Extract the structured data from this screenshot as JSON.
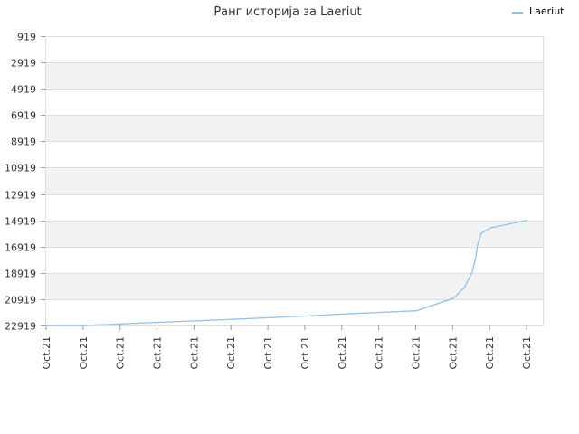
{
  "chart_data": {
    "type": "line",
    "title": "Ранг историја за Laeriut",
    "xlabel": "",
    "ylabel": "",
    "y_reversed": true,
    "ylim": [
      22919,
      919
    ],
    "y_ticks": [
      919,
      2919,
      4919,
      6919,
      8919,
      10919,
      12919,
      14919,
      16919,
      18919,
      20919,
      22919
    ],
    "y_tick_labels": [
      "919",
      "2919",
      "4919",
      "6919",
      "8919",
      "10919",
      "12919",
      "14919",
      "16919",
      "18919",
      "20919",
      "22919"
    ],
    "x_tick_labels": [
      "Oct.21",
      "Oct.21",
      "Oct.21",
      "Oct.21",
      "Oct.21",
      "Oct.21",
      "Oct.21",
      "Oct.21",
      "Oct.21",
      "Oct.21",
      "Oct.21",
      "Oct.21",
      "Oct.21",
      "Oct.21"
    ],
    "grid": true,
    "legend_position": "top-right",
    "colors": {
      "line": "#90c0ee",
      "band_light": "#f2f2f2",
      "band_white": "#ffffff",
      "grid": "#dddddd",
      "text": "#333333"
    },
    "series": [
      {
        "name": "Laeriut",
        "x": [
          0,
          1,
          2,
          3,
          4,
          5,
          6,
          7,
          8,
          9,
          10,
          11,
          11.3,
          11.5,
          11.6,
          11.65,
          11.75,
          12,
          12.5,
          13
        ],
        "y": [
          22919,
          22920,
          22800,
          22680,
          22570,
          22450,
          22330,
          22200,
          22050,
          21920,
          21800,
          20850,
          20000,
          18900,
          17800,
          16800,
          15900,
          15500,
          15200,
          14919
        ]
      }
    ]
  }
}
